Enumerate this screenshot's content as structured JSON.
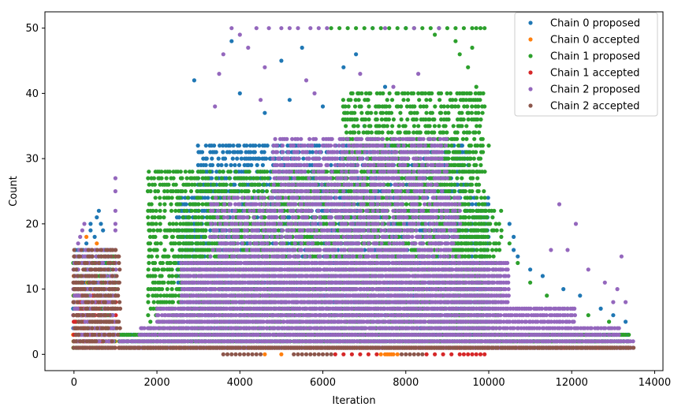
{
  "chart_data": {
    "type": "scatter",
    "xlabel": "Iteration",
    "ylabel": "Count",
    "xlim": [
      -700,
      14200
    ],
    "ylim": [
      -2.5,
      52.5
    ],
    "xticks": [
      0,
      2000,
      4000,
      6000,
      8000,
      10000,
      12000,
      14000
    ],
    "yticks": [
      0,
      10,
      20,
      30,
      40,
      50
    ],
    "grid": false,
    "legend_position": "top-right",
    "series": [
      {
        "name": "Chain 0 proposed",
        "color": "#1f77b4",
        "bands": [
          {
            "x0": 0,
            "x1": 1000,
            "y0": 1,
            "y1": 16
          },
          {
            "x0": 1100,
            "x1": 13400,
            "y0": 1,
            "y1": 3
          },
          {
            "x0": 2500,
            "x1": 10000,
            "y0": 4,
            "y1": 24
          },
          {
            "x0": 3000,
            "x1": 9500,
            "y0": 25,
            "y1": 32
          }
        ],
        "points": [
          [
            300,
            17
          ],
          [
            400,
            19
          ],
          [
            400,
            20
          ],
          [
            500,
            18
          ],
          [
            550,
            21
          ],
          [
            600,
            22
          ],
          [
            650,
            20
          ],
          [
            700,
            19
          ],
          [
            2900,
            42
          ],
          [
            3800,
            48
          ],
          [
            4000,
            40
          ],
          [
            5000,
            45
          ],
          [
            5500,
            47
          ],
          [
            6000,
            38
          ],
          [
            6500,
            44
          ],
          [
            7000,
            35
          ],
          [
            7500,
            41
          ],
          [
            8000,
            50
          ],
          [
            7200,
            50
          ],
          [
            6800,
            46
          ],
          [
            5200,
            39
          ],
          [
            4600,
            37
          ],
          [
            10500,
            20
          ],
          [
            10600,
            18
          ],
          [
            10600,
            16
          ],
          [
            10700,
            15
          ],
          [
            11000,
            13
          ],
          [
            11300,
            12
          ],
          [
            11800,
            10
          ],
          [
            12200,
            9
          ],
          [
            12700,
            7
          ],
          [
            13000,
            6
          ],
          [
            13300,
            5
          ]
        ]
      },
      {
        "name": "Chain 0 accepted",
        "color": "#ff7f0e",
        "bands": [
          {
            "x0": 0,
            "x1": 1000,
            "y0": 1,
            "y1": 12
          },
          {
            "x0": 1100,
            "x1": 13400,
            "y0": 1,
            "y1": 1
          }
        ],
        "points": [
          [
            300,
            18
          ],
          [
            250,
            14
          ],
          [
            550,
            17
          ],
          [
            200,
            2
          ],
          [
            350,
            1
          ],
          [
            4600,
            0
          ],
          [
            5000,
            0
          ],
          [
            7400,
            0
          ],
          [
            7500,
            0
          ],
          [
            7600,
            0
          ],
          [
            7700,
            0
          ],
          [
            7800,
            0
          ],
          [
            7550,
            0
          ],
          [
            7650,
            0
          ]
        ]
      },
      {
        "name": "Chain 1 proposed",
        "color": "#2ca02c",
        "bands": [
          {
            "x0": 0,
            "x1": 1000,
            "y0": 1,
            "y1": 15
          },
          {
            "x0": 1100,
            "x1": 13400,
            "y0": 1,
            "y1": 3
          },
          {
            "x0": 1800,
            "x1": 9900,
            "y0": 4,
            "y1": 28
          },
          {
            "x0": 6500,
            "x1": 9900,
            "y0": 28,
            "y1": 40
          },
          {
            "x0": 9200,
            "x1": 10300,
            "y0": 4,
            "y1": 22
          }
        ],
        "points": [
          [
            6200,
            50
          ],
          [
            6400,
            50
          ],
          [
            6600,
            50
          ],
          [
            6800,
            50
          ],
          [
            7000,
            50
          ],
          [
            7200,
            50
          ],
          [
            7400,
            50
          ],
          [
            7600,
            50
          ],
          [
            7800,
            50
          ],
          [
            8000,
            50
          ],
          [
            8200,
            50
          ],
          [
            8400,
            50
          ],
          [
            8600,
            50
          ],
          [
            8800,
            50
          ],
          [
            9000,
            50
          ],
          [
            9200,
            50
          ],
          [
            9400,
            50
          ],
          [
            9600,
            50
          ],
          [
            9700,
            50
          ],
          [
            9800,
            50
          ],
          [
            9900,
            50
          ],
          [
            8700,
            49
          ],
          [
            9300,
            46
          ],
          [
            9500,
            44
          ],
          [
            9700,
            41
          ],
          [
            9800,
            40
          ],
          [
            9900,
            38
          ],
          [
            10000,
            32
          ],
          [
            9200,
            48
          ],
          [
            9600,
            47
          ],
          [
            10500,
            17
          ],
          [
            10700,
            14
          ],
          [
            11000,
            11
          ],
          [
            11400,
            9
          ],
          [
            11900,
            7
          ],
          [
            12400,
            6
          ],
          [
            12900,
            5
          ]
        ]
      },
      {
        "name": "Chain 1 accepted",
        "color": "#d62728",
        "bands": [
          {
            "x0": 0,
            "x1": 1000,
            "y0": 1,
            "y1": 9
          },
          {
            "x0": 1100,
            "x1": 13400,
            "y0": 1,
            "y1": 1
          }
        ],
        "points": [
          [
            250,
            2
          ],
          [
            300,
            2
          ],
          [
            350,
            2
          ],
          [
            400,
            2
          ],
          [
            450,
            2
          ],
          [
            500,
            2
          ],
          [
            6300,
            0
          ],
          [
            6500,
            0
          ],
          [
            6700,
            0
          ],
          [
            6900,
            0
          ],
          [
            7100,
            0
          ],
          [
            7300,
            0
          ],
          [
            8500,
            0
          ],
          [
            8700,
            0
          ],
          [
            8900,
            0
          ],
          [
            9100,
            0
          ],
          [
            9300,
            0
          ],
          [
            9400,
            0
          ],
          [
            9500,
            0
          ],
          [
            9600,
            0
          ],
          [
            9700,
            0
          ],
          [
            9800,
            0
          ],
          [
            9900,
            0
          ]
        ]
      },
      {
        "name": "Chain 2 proposed",
        "color": "#9467bd",
        "bands": [
          {
            "x0": 0,
            "x1": 1000,
            "y0": 1,
            "y1": 16
          },
          {
            "x0": 1100,
            "x1": 13500,
            "y0": 1,
            "y1": 2
          },
          {
            "x0": 1600,
            "x1": 13200,
            "y0": 3,
            "y1": 4
          },
          {
            "x0": 2000,
            "x1": 12100,
            "y0": 5,
            "y1": 7
          },
          {
            "x0": 2600,
            "x1": 10500,
            "y0": 8,
            "y1": 14
          },
          {
            "x0": 3300,
            "x1": 9300,
            "y0": 15,
            "y1": 24
          },
          {
            "x0": 4800,
            "x1": 9000,
            "y0": 25,
            "y1": 33
          }
        ],
        "points": [
          [
            100,
            17
          ],
          [
            150,
            18
          ],
          [
            200,
            19
          ],
          [
            250,
            20
          ],
          [
            1000,
            19
          ],
          [
            1000,
            20
          ],
          [
            1000,
            22
          ],
          [
            1000,
            25
          ],
          [
            1000,
            27
          ],
          [
            3800,
            50
          ],
          [
            4400,
            50
          ],
          [
            4700,
            50
          ],
          [
            5000,
            50
          ],
          [
            5200,
            50
          ],
          [
            5400,
            50
          ],
          [
            5700,
            50
          ],
          [
            5900,
            50
          ],
          [
            6100,
            50
          ],
          [
            7500,
            50
          ],
          [
            8200,
            50
          ],
          [
            8800,
            50
          ],
          [
            4000,
            49
          ],
          [
            3600,
            46
          ],
          [
            4200,
            47
          ],
          [
            4600,
            44
          ],
          [
            3500,
            43
          ],
          [
            5600,
            42
          ],
          [
            6900,
            43
          ],
          [
            7700,
            41
          ],
          [
            8300,
            43
          ],
          [
            4500,
            39
          ],
          [
            3400,
            38
          ],
          [
            5800,
            40
          ],
          [
            11700,
            23
          ],
          [
            12100,
            20
          ],
          [
            11500,
            16
          ],
          [
            11900,
            16
          ],
          [
            12400,
            13
          ],
          [
            12800,
            11
          ],
          [
            13100,
            10
          ],
          [
            13200,
            15
          ],
          [
            13000,
            8
          ],
          [
            13300,
            8
          ]
        ]
      },
      {
        "name": "Chain 2 accepted",
        "color": "#8c564b",
        "bands": [
          {
            "x0": 0,
            "x1": 1100,
            "y0": 1,
            "y1": 16
          },
          {
            "x0": 1100,
            "x1": 13500,
            "y0": 1,
            "y1": 1
          }
        ],
        "points": [
          [
            3600,
            0
          ],
          [
            3700,
            0
          ],
          [
            3800,
            0
          ],
          [
            3900,
            0
          ],
          [
            4000,
            0
          ],
          [
            4100,
            0
          ],
          [
            4200,
            0
          ],
          [
            4300,
            0
          ],
          [
            4400,
            0
          ],
          [
            4500,
            0
          ],
          [
            5300,
            0
          ],
          [
            5400,
            0
          ],
          [
            5500,
            0
          ],
          [
            5600,
            0
          ],
          [
            5700,
            0
          ],
          [
            5800,
            0
          ],
          [
            5900,
            0
          ],
          [
            6000,
            0
          ],
          [
            6100,
            0
          ],
          [
            6200,
            0
          ],
          [
            7900,
            0
          ],
          [
            8000,
            0
          ],
          [
            8100,
            0
          ],
          [
            8200,
            0
          ],
          [
            8300,
            0
          ],
          [
            8400,
            0
          ]
        ]
      }
    ]
  }
}
